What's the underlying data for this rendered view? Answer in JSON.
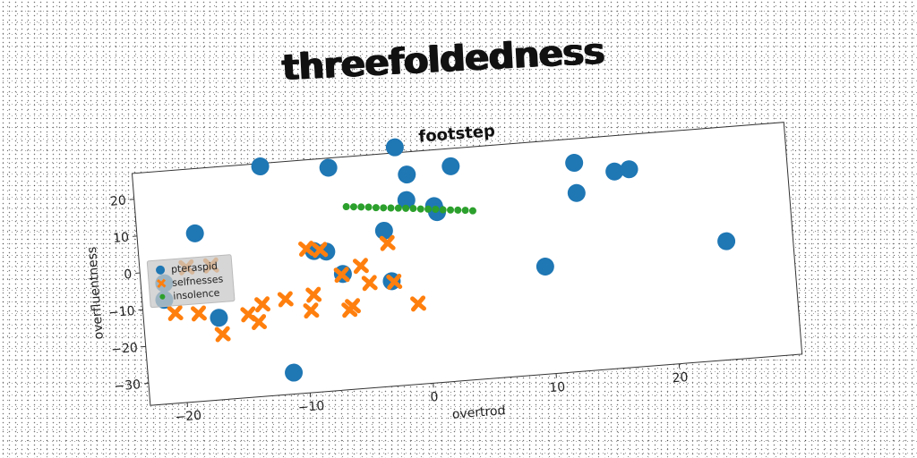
{
  "figure": {
    "title": "threefoldedness"
  },
  "chart_data": {
    "type": "scatter",
    "title": "footstep",
    "xlabel": "overtrod",
    "ylabel": "overfluentness",
    "xlim": [
      -23,
      30
    ],
    "ylim": [
      -36,
      27
    ],
    "xticks": [
      -20,
      -10,
      0,
      10,
      20
    ],
    "yticks": [
      -30,
      -20,
      -10,
      0,
      10,
      20
    ],
    "grid": false,
    "legend_position": "center-left",
    "colors": {
      "pteraspid": "#1f77b4",
      "selfnesses": "#ff7f0e",
      "insolence": "#2ca02c"
    },
    "series": [
      {
        "name": "pteraspid",
        "marker": "circle",
        "points": [
          [
            -12.6,
            26.2
          ],
          [
            -7.1,
            24.4
          ],
          [
            -1.6,
            28.5
          ],
          [
            -0.8,
            20.9
          ],
          [
            2.8,
            22.2
          ],
          [
            -18.3,
            9.5
          ],
          [
            -1.0,
            14.0
          ],
          [
            1.2,
            11.8
          ],
          [
            1.4,
            10.1
          ],
          [
            -3.0,
            6.2
          ],
          [
            -8.8,
            2.2
          ],
          [
            -7.8,
            1.8
          ],
          [
            -21.1,
            -3.3
          ],
          [
            -21.2,
            -7.8
          ],
          [
            -6.6,
            -4.6
          ],
          [
            -2.7,
            -7.6
          ],
          [
            -16.9,
            -13.8
          ],
          [
            -11.2,
            -30.2
          ],
          [
            12.8,
            20.5
          ],
          [
            12.8,
            12.3
          ],
          [
            16.0,
            17.3
          ],
          [
            17.2,
            17.6
          ],
          [
            9.8,
            -6.9
          ],
          [
            24.6,
            -3.9
          ]
        ]
      },
      {
        "name": "selfnesses",
        "marker": "x",
        "points": [
          [
            -19.2,
            0.5
          ],
          [
            -17.2,
            0.5
          ],
          [
            -9.4,
            3.0
          ],
          [
            -8.3,
            2.4
          ],
          [
            -2.8,
            2.8
          ],
          [
            -5.1,
            -2.8
          ],
          [
            -6.7,
            -4.8
          ],
          [
            -9.1,
            -9.6
          ],
          [
            -20.4,
            -11.6
          ],
          [
            -18.5,
            -12.2
          ],
          [
            -13.3,
            -11.1
          ],
          [
            -11.4,
            -10.2
          ],
          [
            -4.5,
            -7.6
          ],
          [
            -2.5,
            -7.8
          ],
          [
            -16.7,
            -18.3
          ],
          [
            -14.5,
            -13.5
          ],
          [
            -13.7,
            -15.8
          ],
          [
            -9.4,
            -13.8
          ],
          [
            -6.0,
            -13.5
          ],
          [
            -6.3,
            -14.4
          ],
          [
            -0.7,
            -14.2
          ]
        ]
      },
      {
        "name": "insolence",
        "marker": "point",
        "points": [
          [
            -5.9,
            13.5
          ],
          [
            -5.3,
            13.3
          ],
          [
            -4.7,
            13.1
          ],
          [
            -4.1,
            12.9
          ],
          [
            -3.5,
            12.6
          ],
          [
            -2.9,
            12.4
          ],
          [
            -2.3,
            12.2
          ],
          [
            -1.7,
            12.0
          ],
          [
            -1.1,
            11.8
          ],
          [
            -0.5,
            11.6
          ],
          [
            0.1,
            11.3
          ],
          [
            0.7,
            11.1
          ],
          [
            1.3,
            10.9
          ],
          [
            1.9,
            10.6
          ],
          [
            2.5,
            10.4
          ],
          [
            3.1,
            10.2
          ],
          [
            3.7,
            10.0
          ],
          [
            4.3,
            9.7
          ]
        ]
      }
    ]
  }
}
